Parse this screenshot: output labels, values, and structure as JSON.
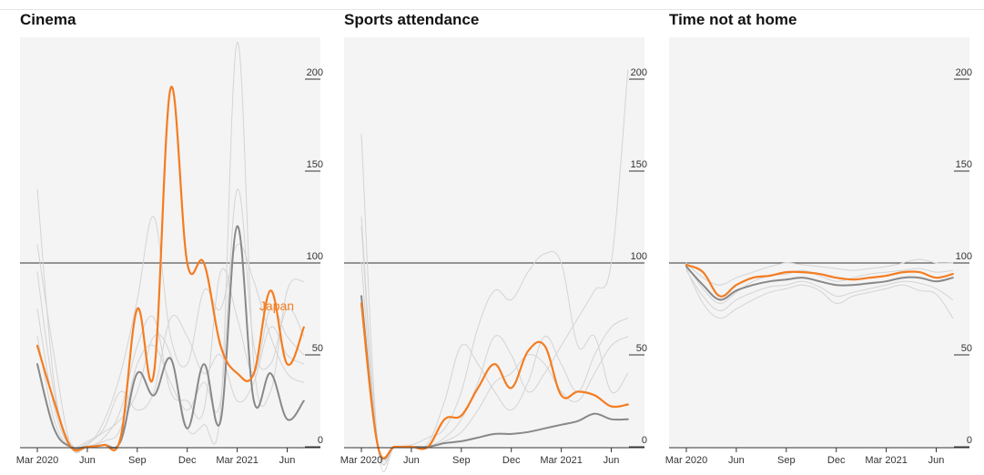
{
  "colors": {
    "highlight": "#f47c20",
    "median": "#888888",
    "others": "#d4d4d4",
    "plot_bg": "#f4f4f4"
  },
  "chart_data": [
    {
      "type": "line",
      "title": "Cinema",
      "ylim": [
        0,
        220
      ],
      "yticks": [
        "0",
        "50",
        "100",
        "150",
        "200"
      ],
      "xticks": [
        "Mar 2020",
        "Jun",
        "Sep",
        "Dec",
        "Mar 2021",
        "Jun"
      ],
      "x": [
        "2020-03",
        "2020-04",
        "2020-05",
        "2020-06",
        "2020-07",
        "2020-08",
        "2020-09",
        "2020-10",
        "2020-11",
        "2020-12",
        "2021-01",
        "2021-02",
        "2021-03",
        "2021-04",
        "2021-05",
        "2021-06",
        "2021-07"
      ],
      "annotation": "Japan",
      "series": [
        {
          "role": "highlight",
          "values": [
            55,
            25,
            0,
            0,
            1,
            5,
            75,
            40,
            195,
            100,
            100,
            55,
            40,
            40,
            85,
            45,
            65
          ]
        },
        {
          "role": "median",
          "values": [
            45,
            10,
            0,
            0,
            1,
            3,
            40,
            28,
            48,
            10,
            45,
            14,
            120,
            25,
            40,
            15,
            25
          ]
        },
        {
          "role": "other",
          "values": [
            95,
            30,
            2,
            1,
            14,
            40,
            80,
            125,
            60,
            45,
            85,
            75,
            110,
            90,
            60,
            40,
            35
          ]
        },
        {
          "role": "other",
          "values": [
            140,
            35,
            0,
            0,
            5,
            20,
            55,
            70,
            30,
            25,
            20,
            95,
            70,
            40,
            75,
            60,
            50
          ]
        },
        {
          "role": "other",
          "values": [
            60,
            15,
            0,
            3,
            8,
            15,
            30,
            60,
            50,
            10,
            12,
            20,
            220,
            45,
            30,
            85,
            90
          ]
        },
        {
          "role": "other",
          "values": [
            110,
            50,
            1,
            0,
            3,
            10,
            45,
            55,
            35,
            20,
            35,
            25,
            140,
            55,
            45,
            75,
            60
          ]
        },
        {
          "role": "other",
          "values": [
            75,
            22,
            0,
            2,
            10,
            30,
            20,
            30,
            70,
            60,
            40,
            50,
            25,
            35,
            65,
            50,
            45
          ]
        }
      ]
    },
    {
      "type": "line",
      "title": "Sports attendance",
      "ylim": [
        0,
        220
      ],
      "yticks": [
        "0",
        "50",
        "100",
        "150",
        "200"
      ],
      "xticks": [
        "Mar 2020",
        "Jun",
        "Sep",
        "Dec",
        "Mar 2021",
        "Jun"
      ],
      "x": [
        "2020-03",
        "2020-04",
        "2020-05",
        "2020-06",
        "2020-07",
        "2020-08",
        "2020-09",
        "2020-10",
        "2020-11",
        "2020-12",
        "2021-01",
        "2021-02",
        "2021-03",
        "2021-04",
        "2021-05",
        "2021-06",
        "2021-07"
      ],
      "series": [
        {
          "role": "highlight",
          "values": [
            78,
            0,
            0,
            0,
            0,
            15,
            17,
            32,
            45,
            32,
            52,
            55,
            28,
            30,
            28,
            22,
            23
          ]
        },
        {
          "role": "median",
          "values": [
            82,
            0,
            0,
            0,
            0,
            2,
            3,
            5,
            7,
            7,
            8,
            10,
            12,
            14,
            18,
            15,
            15
          ]
        },
        {
          "role": "other",
          "values": [
            120,
            0,
            0,
            0,
            0,
            5,
            15,
            35,
            60,
            50,
            30,
            40,
            55,
            70,
            85,
            100,
            205
          ]
        },
        {
          "role": "other",
          "values": [
            170,
            0,
            0,
            0,
            2,
            25,
            55,
            45,
            30,
            20,
            35,
            60,
            45,
            30,
            50,
            65,
            70
          ]
        },
        {
          "role": "other",
          "values": [
            100,
            0,
            0,
            1,
            5,
            10,
            30,
            65,
            85,
            80,
            95,
            105,
            100,
            55,
            60,
            30,
            40
          ]
        },
        {
          "role": "other",
          "values": [
            125,
            0,
            0,
            0,
            0,
            3,
            8,
            20,
            35,
            40,
            50,
            45,
            30,
            25,
            40,
            55,
            60
          ]
        }
      ]
    },
    {
      "type": "line",
      "title": "Time not at home",
      "ylim": [
        0,
        220
      ],
      "yticks": [
        "0",
        "50",
        "100",
        "150",
        "200"
      ],
      "xticks": [
        "Mar 2020",
        "Jun",
        "Sep",
        "Dec",
        "Mar 2021",
        "Jun"
      ],
      "x": [
        "2020-03",
        "2020-04",
        "2020-05",
        "2020-06",
        "2020-07",
        "2020-08",
        "2020-09",
        "2020-10",
        "2020-11",
        "2020-12",
        "2021-01",
        "2021-02",
        "2021-03",
        "2021-04",
        "2021-05",
        "2021-06",
        "2021-07"
      ],
      "series": [
        {
          "role": "highlight",
          "values": [
            99,
            95,
            82,
            88,
            92,
            93,
            95,
            95,
            94,
            92,
            91,
            92,
            93,
            95,
            95,
            92,
            94
          ]
        },
        {
          "role": "median",
          "values": [
            98,
            88,
            80,
            85,
            88,
            90,
            91,
            92,
            90,
            88,
            88,
            89,
            90,
            92,
            92,
            90,
            92
          ]
        },
        {
          "role": "other",
          "values": [
            97,
            78,
            70,
            75,
            80,
            84,
            86,
            88,
            85,
            78,
            82,
            84,
            86,
            88,
            85,
            83,
            70
          ]
        },
        {
          "role": "other",
          "values": [
            100,
            92,
            88,
            92,
            95,
            98,
            100,
            99,
            98,
            97,
            96,
            97,
            98,
            100,
            102,
            100,
            100
          ]
        },
        {
          "role": "other",
          "values": [
            96,
            82,
            74,
            80,
            84,
            87,
            88,
            90,
            87,
            82,
            84,
            86,
            88,
            90,
            89,
            86,
            80
          ]
        },
        {
          "role": "other",
          "values": [
            99,
            86,
            78,
            84,
            90,
            93,
            94,
            96,
            93,
            90,
            92,
            94,
            95,
            96,
            97,
            95,
            96
          ]
        }
      ]
    }
  ]
}
